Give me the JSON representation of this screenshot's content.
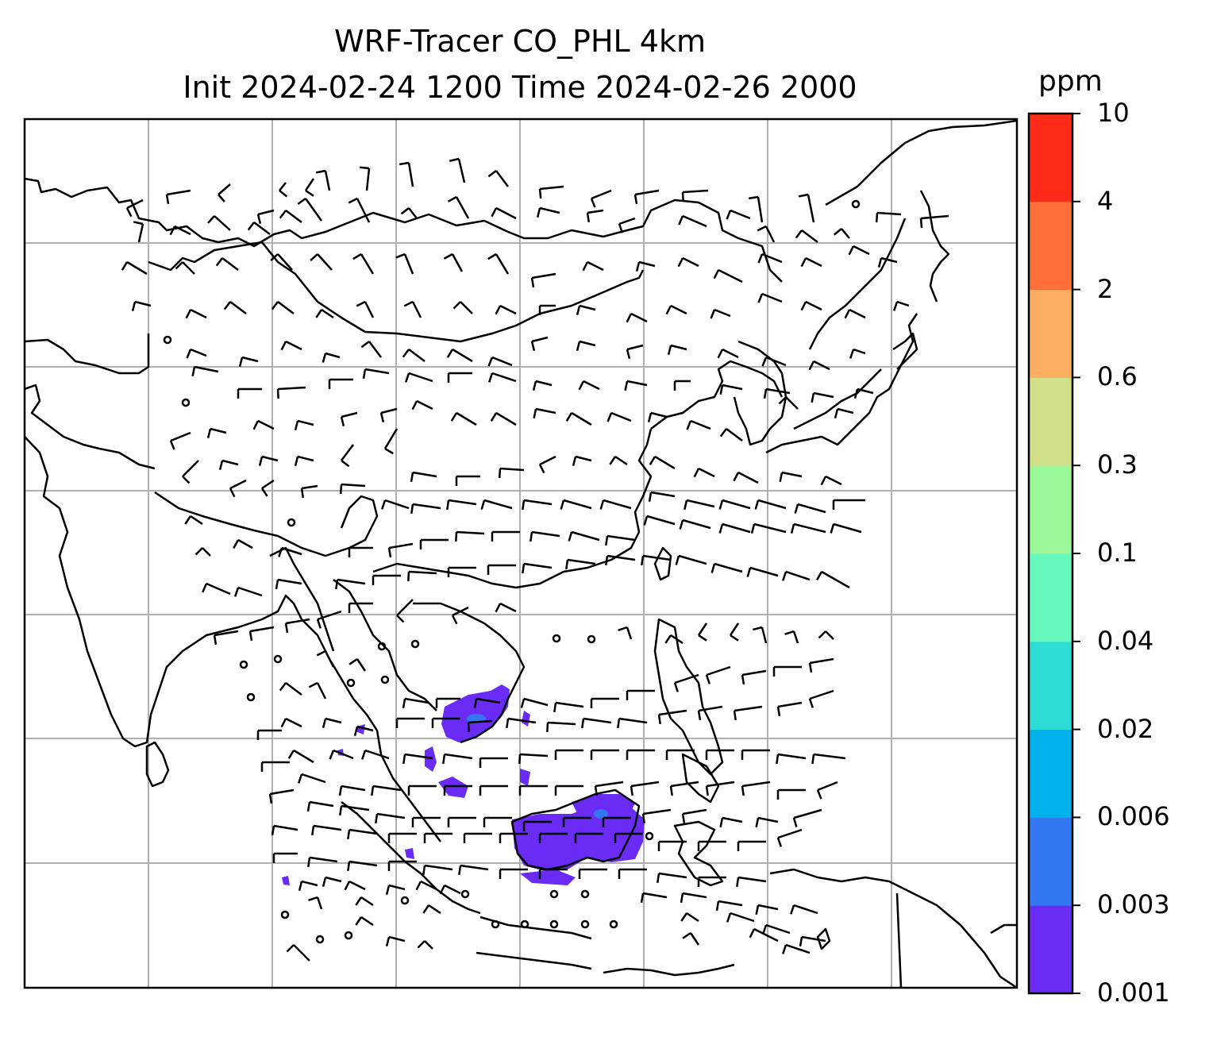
{
  "title": {
    "line1": "WRF-Tracer CO_PHL 4km",
    "line2": "Init 2024-02-24 1200 Time 2024-02-26 2000"
  },
  "colorbar": {
    "unit": "ppm",
    "levels": [
      "0.001",
      "0.003",
      "0.006",
      "0.02",
      "0.04",
      "0.1",
      "0.3",
      "0.6",
      "2",
      "4",
      "10"
    ],
    "colors": [
      "#6a2cf5",
      "#3377f2",
      "#00b2ec",
      "#2edcd6",
      "#66f7bd",
      "#9af898",
      "#cfe089",
      "#fdae61",
      "#ff7038",
      "#ff2a17"
    ]
  },
  "map": {
    "gridlines": true,
    "background": "#ffffff",
    "coastline_color": "#000000",
    "grid_color": "#b0b0b0",
    "tracer_fill_color": "#6a2cf5",
    "tracer_core_color": "#3377f2"
  }
}
